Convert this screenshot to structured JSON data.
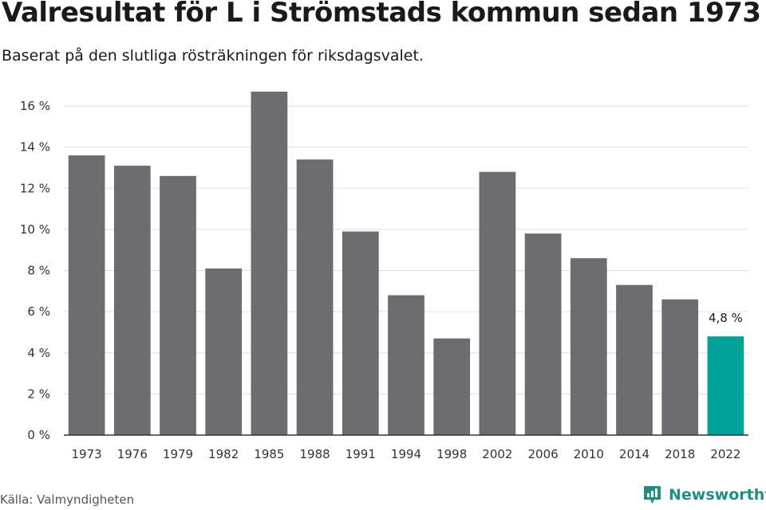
{
  "title": "Valresultat för L i Strömstads kommun sedan 1973",
  "subtitle": "Baserat på den slutliga rösträkningen för riksdagsvalet.",
  "source": "Källa: Valmyndigheten",
  "brand": {
    "name": "Newsworthy",
    "icon": "newsworthy-logo-icon",
    "color": "#1f8f85"
  },
  "colors": {
    "bar": "#6d6c71",
    "highlight": "#00a398",
    "grid": "#dddddd",
    "axis": "#333333"
  },
  "chart_data": {
    "type": "bar",
    "categories": [
      "1973",
      "1976",
      "1979",
      "1982",
      "1985",
      "1988",
      "1991",
      "1994",
      "1998",
      "2002",
      "2006",
      "2010",
      "2014",
      "2018",
      "2022"
    ],
    "values": [
      13.6,
      13.1,
      12.6,
      8.1,
      16.7,
      13.4,
      9.9,
      6.8,
      4.7,
      12.8,
      9.8,
      8.6,
      7.3,
      6.6,
      4.8
    ],
    "highlight_index": 14,
    "data_labels": [
      {
        "index": 14,
        "text": "4,8 %"
      }
    ],
    "yticks": [
      "0 %",
      "2 %",
      "4 %",
      "6 %",
      "8 %",
      "10 %",
      "12 %",
      "14 %",
      "16 %"
    ],
    "ytick_values": [
      0,
      2,
      4,
      6,
      8,
      10,
      12,
      14,
      16
    ],
    "ylim": [
      0,
      16.7
    ],
    "grid": true
  }
}
